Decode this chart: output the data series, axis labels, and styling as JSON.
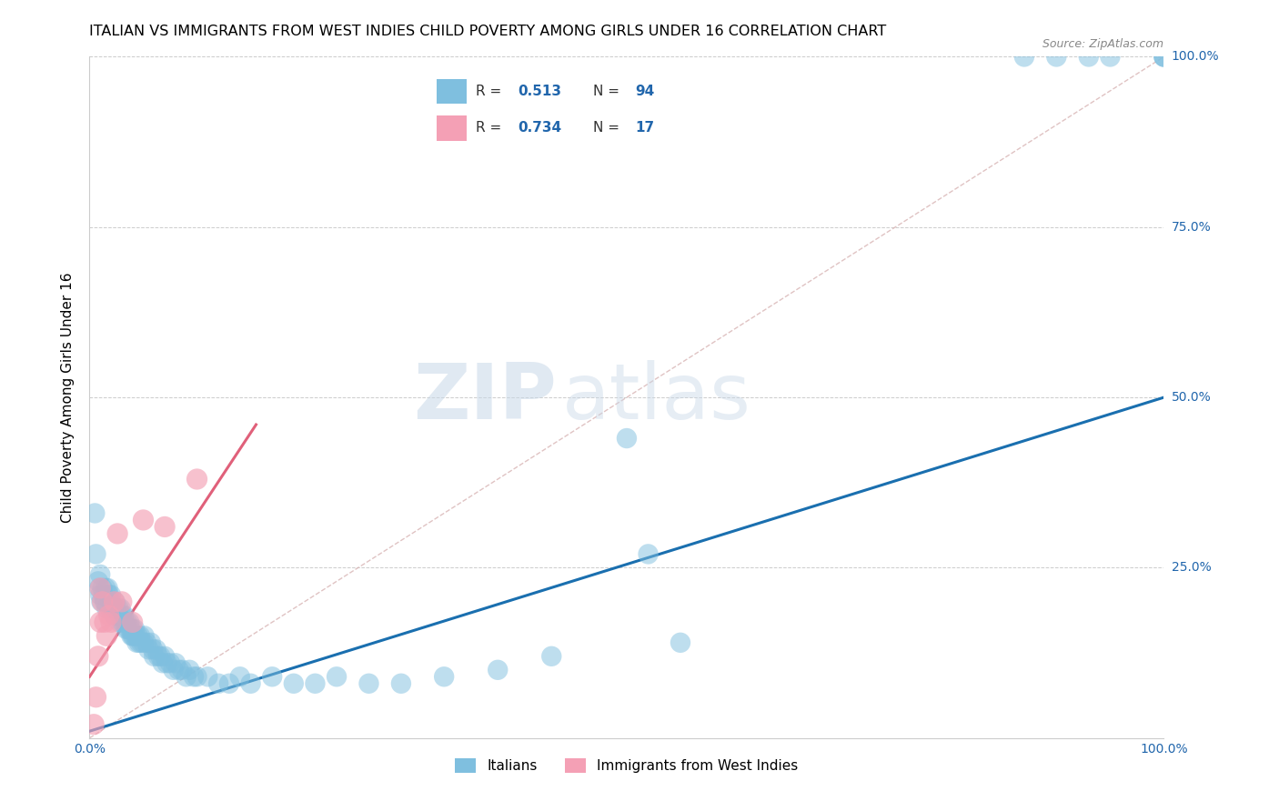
{
  "title": "ITALIAN VS IMMIGRANTS FROM WEST INDIES CHILD POVERTY AMONG GIRLS UNDER 16 CORRELATION CHART",
  "source": "Source: ZipAtlas.com",
  "ylabel": "Child Poverty Among Girls Under 16",
  "xlim": [
    0,
    1
  ],
  "ylim": [
    0,
    1
  ],
  "blue_color": "#7fbfdf",
  "pink_color": "#f4a0b5",
  "blue_line_color": "#1a6faf",
  "pink_line_color": "#e0607a",
  "diagonal_color": "#d8b4b4",
  "R_blue": "0.513",
  "N_blue": "94",
  "R_pink": "0.734",
  "N_pink": "17",
  "legend_label_blue": "Italians",
  "legend_label_pink": "Immigrants from West Indies",
  "watermark_zip": "ZIP",
  "watermark_atlas": "atlas",
  "background_color": "#ffffff",
  "title_fontsize": 11.5,
  "axis_label_fontsize": 11,
  "tick_fontsize": 10,
  "legend_fontsize": 11,
  "blue_trend_x": [
    0.0,
    1.0
  ],
  "blue_trend_y": [
    0.01,
    0.5
  ],
  "pink_trend_x": [
    0.0,
    0.155
  ],
  "pink_trend_y": [
    0.09,
    0.46
  ],
  "blue_x": [
    0.005,
    0.006,
    0.008,
    0.009,
    0.01,
    0.01,
    0.011,
    0.012,
    0.013,
    0.014,
    0.015,
    0.015,
    0.016,
    0.017,
    0.018,
    0.019,
    0.02,
    0.02,
    0.021,
    0.022,
    0.023,
    0.024,
    0.025,
    0.026,
    0.027,
    0.028,
    0.029,
    0.03,
    0.03,
    0.031,
    0.032,
    0.033,
    0.034,
    0.035,
    0.036,
    0.037,
    0.038,
    0.039,
    0.04,
    0.04,
    0.041,
    0.042,
    0.043,
    0.044,
    0.045,
    0.046,
    0.047,
    0.048,
    0.05,
    0.051,
    0.053,
    0.055,
    0.057,
    0.059,
    0.06,
    0.062,
    0.064,
    0.066,
    0.068,
    0.07,
    0.072,
    0.075,
    0.078,
    0.08,
    0.083,
    0.086,
    0.09,
    0.093,
    0.097,
    0.1,
    0.11,
    0.12,
    0.13,
    0.14,
    0.15,
    0.17,
    0.19,
    0.21,
    0.23,
    0.26,
    0.29,
    0.33,
    0.38,
    0.43,
    0.5,
    0.52,
    0.55,
    0.87,
    0.9,
    0.93,
    0.95,
    1.0,
    1.0,
    1.0
  ],
  "blue_y": [
    0.33,
    0.27,
    0.23,
    0.22,
    0.24,
    0.21,
    0.2,
    0.22,
    0.21,
    0.2,
    0.22,
    0.2,
    0.19,
    0.22,
    0.21,
    0.19,
    0.21,
    0.2,
    0.19,
    0.19,
    0.18,
    0.2,
    0.19,
    0.18,
    0.19,
    0.17,
    0.19,
    0.18,
    0.17,
    0.17,
    0.18,
    0.17,
    0.16,
    0.17,
    0.16,
    0.17,
    0.16,
    0.15,
    0.16,
    0.15,
    0.15,
    0.16,
    0.15,
    0.14,
    0.15,
    0.14,
    0.15,
    0.14,
    0.14,
    0.15,
    0.14,
    0.13,
    0.14,
    0.13,
    0.12,
    0.13,
    0.12,
    0.12,
    0.11,
    0.12,
    0.11,
    0.11,
    0.1,
    0.11,
    0.1,
    0.1,
    0.09,
    0.1,
    0.09,
    0.09,
    0.09,
    0.08,
    0.08,
    0.09,
    0.08,
    0.09,
    0.08,
    0.08,
    0.09,
    0.08,
    0.08,
    0.09,
    0.1,
    0.12,
    0.44,
    0.27,
    0.14,
    1.0,
    1.0,
    1.0,
    1.0,
    1.0,
    1.0,
    1.0
  ],
  "pink_x": [
    0.004,
    0.006,
    0.008,
    0.01,
    0.01,
    0.012,
    0.014,
    0.016,
    0.018,
    0.02,
    0.023,
    0.026,
    0.03,
    0.04,
    0.05,
    0.07,
    0.1
  ],
  "pink_y": [
    0.02,
    0.06,
    0.12,
    0.22,
    0.17,
    0.2,
    0.17,
    0.15,
    0.18,
    0.17,
    0.2,
    0.3,
    0.2,
    0.17,
    0.32,
    0.31,
    0.38
  ]
}
